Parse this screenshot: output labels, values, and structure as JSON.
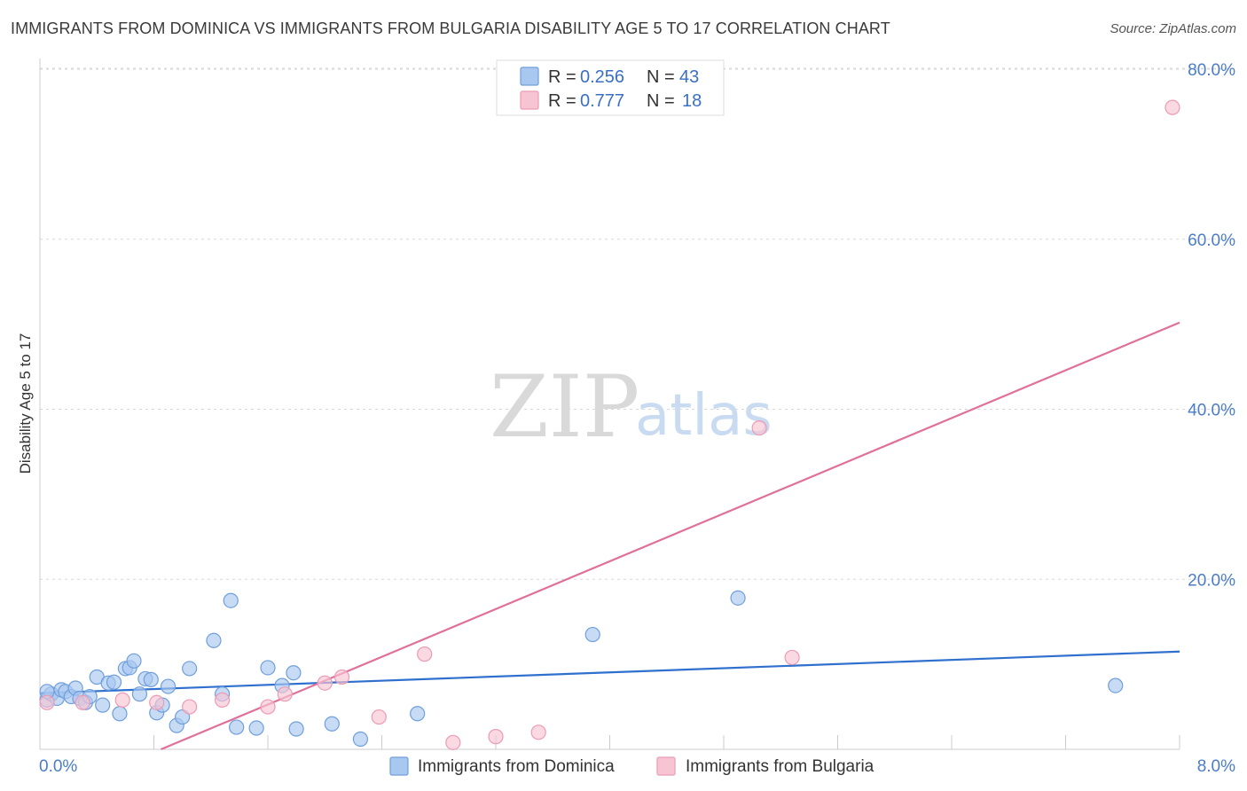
{
  "header": {
    "title": "IMMIGRANTS FROM DOMINICA VS IMMIGRANTS FROM BULGARIA DISABILITY AGE 5 TO 17 CORRELATION CHART",
    "source": "Source: ZipAtlas.com"
  },
  "colors": {
    "dominica_fill": "#a9c8f0",
    "dominica_stroke": "#6f9fdc",
    "dominica_line": "#2f6fce",
    "bulgaria_fill": "#f7c4d3",
    "bulgaria_stroke": "#ec9bb4",
    "bulgaria_line": "#e0709a",
    "grid": "#d8d8d8"
  },
  "watermark": {
    "zip": "ZIP",
    "atlas": "atlas"
  },
  "chart_data": {
    "type": "scatter",
    "title": "IMMIGRANTS FROM DOMINICA VS IMMIGRANTS FROM BULGARIA DISABILITY AGE 5 TO 17 CORRELATION CHART",
    "xlabel": "",
    "ylabel": "Disability Age 5 to 17",
    "xlim": [
      0,
      8
    ],
    "ylim": [
      0,
      80
    ],
    "x_tick_labels": [
      "0.0%",
      "8.0%"
    ],
    "y_ticks": [
      20,
      40,
      60,
      80
    ],
    "y_tick_labels": [
      "20.0%",
      "40.0%",
      "60.0%",
      "80.0%"
    ],
    "legend": [
      {
        "r_label": "R = ",
        "r_value": "0.256",
        "n_label": "N = ",
        "n_value": "43"
      },
      {
        "r_label": "R = ",
        "r_value": "0.777",
        "n_label": "N = ",
        "n_value": "18"
      }
    ],
    "series": [
      {
        "name": "Immigrants from Dominica",
        "points": [
          [
            0.05,
            5.8
          ],
          [
            0.08,
            6.5
          ],
          [
            0.12,
            6.0
          ],
          [
            0.15,
            7.0
          ],
          [
            0.18,
            6.8
          ],
          [
            0.22,
            6.2
          ],
          [
            0.25,
            7.2
          ],
          [
            0.28,
            6.0
          ],
          [
            0.32,
            5.5
          ],
          [
            0.35,
            6.2
          ],
          [
            0.4,
            8.5
          ],
          [
            0.44,
            5.2
          ],
          [
            0.48,
            7.8
          ],
          [
            0.52,
            7.9
          ],
          [
            0.56,
            4.2
          ],
          [
            0.6,
            9.5
          ],
          [
            0.63,
            9.6
          ],
          [
            0.66,
            10.4
          ],
          [
            0.7,
            6.5
          ],
          [
            0.74,
            8.3
          ],
          [
            0.78,
            8.2
          ],
          [
            0.82,
            4.3
          ],
          [
            0.86,
            5.2
          ],
          [
            0.9,
            7.4
          ],
          [
            0.96,
            2.8
          ],
          [
            1.0,
            3.8
          ],
          [
            1.05,
            9.5
          ],
          [
            1.22,
            12.8
          ],
          [
            1.28,
            6.5
          ],
          [
            1.34,
            17.5
          ],
          [
            1.38,
            2.6
          ],
          [
            1.52,
            2.5
          ],
          [
            1.6,
            9.6
          ],
          [
            1.7,
            7.5
          ],
          [
            1.78,
            9.0
          ],
          [
            1.8,
            2.4
          ],
          [
            2.05,
            3.0
          ],
          [
            2.25,
            1.2
          ],
          [
            2.65,
            4.2
          ],
          [
            3.88,
            13.5
          ],
          [
            4.9,
            17.8
          ],
          [
            7.55,
            7.5
          ],
          [
            0.05,
            6.8
          ]
        ],
        "trend": {
          "x": [
            0,
            8
          ],
          "y": [
            6.6,
            11.5
          ]
        }
      },
      {
        "name": "Immigrants from Bulgaria",
        "points": [
          [
            0.05,
            5.5
          ],
          [
            0.3,
            5.5
          ],
          [
            0.58,
            5.8
          ],
          [
            0.82,
            5.5
          ],
          [
            1.05,
            5.0
          ],
          [
            1.28,
            5.8
          ],
          [
            1.6,
            5.0
          ],
          [
            1.72,
            6.5
          ],
          [
            2.0,
            7.8
          ],
          [
            2.12,
            8.5
          ],
          [
            2.38,
            3.8
          ],
          [
            2.7,
            11.2
          ],
          [
            2.9,
            0.8
          ],
          [
            3.2,
            1.5
          ],
          [
            3.5,
            2.0
          ],
          [
            5.05,
            37.8
          ],
          [
            5.28,
            10.8
          ],
          [
            7.95,
            75.5
          ]
        ],
        "trend": {
          "x": [
            0.85,
            8
          ],
          "y": [
            0,
            50.2
          ]
        }
      }
    ]
  }
}
